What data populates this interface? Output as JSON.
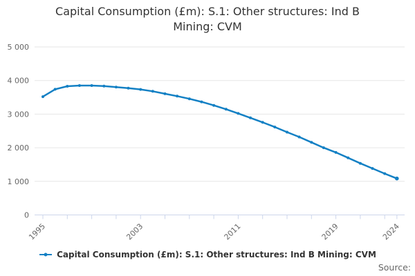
{
  "title": "Capital Consumption (£m): S.1: Other structures: Ind B Mining: CVM",
  "legend": {
    "label": "Capital Consumption (£m): S.1: Other structures: Ind B Mining: CVM",
    "marker": "line-dot-marker"
  },
  "source_label": "Source:",
  "colors": {
    "line": "#1380c4",
    "grid": "#e6e6e6",
    "axis": "#ccd6eb",
    "tick_label": "#666666",
    "title_text": "#333333",
    "legend_text": "#333333"
  },
  "chart_data": {
    "type": "line",
    "title": "Capital Consumption (£m): S.1: Other structures: Ind B Mining: CVM",
    "xlabel": "",
    "ylabel": "",
    "x": [
      1995,
      1996,
      1997,
      1998,
      1999,
      2000,
      2001,
      2002,
      2003,
      2004,
      2005,
      2006,
      2007,
      2008,
      2009,
      2010,
      2011,
      2012,
      2013,
      2014,
      2015,
      2016,
      2017,
      2018,
      2019,
      2020,
      2021,
      2022,
      2023,
      2024
    ],
    "series": [
      {
        "name": "Capital Consumption (£m): S.1: Other structures: Ind B Mining: CVM",
        "values": [
          3520,
          3740,
          3830,
          3850,
          3850,
          3835,
          3805,
          3775,
          3735,
          3680,
          3605,
          3535,
          3455,
          3365,
          3260,
          3145,
          3020,
          2890,
          2755,
          2615,
          2465,
          2320,
          2160,
          2000,
          1860,
          1700,
          1535,
          1385,
          1230,
          1085
        ]
      }
    ],
    "ylim": [
      0,
      5000
    ],
    "y_ticks": [
      0,
      1000,
      2000,
      3000,
      4000,
      5000
    ],
    "y_tick_labels": [
      "0",
      "1 000",
      "2 000",
      "3 000",
      "4 000",
      "5 000"
    ],
    "x_tick_years": [
      1995,
      1997,
      1999,
      2001,
      2003,
      2005,
      2007,
      2009,
      2011,
      2013,
      2015,
      2017,
      2019,
      2021,
      2023,
      2024
    ],
    "x_label_years": [
      1995,
      2003,
      2011,
      2019,
      2024
    ],
    "grid": "horizontal-only",
    "legend_position": "bottom"
  }
}
